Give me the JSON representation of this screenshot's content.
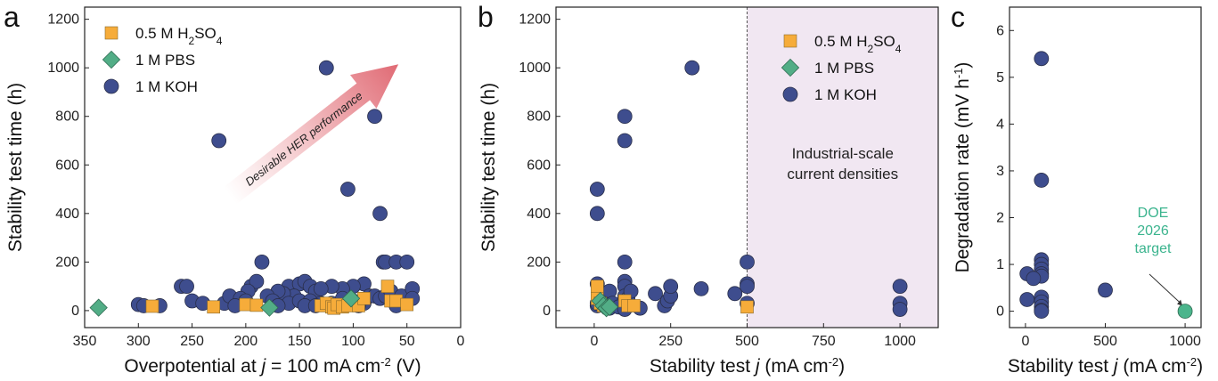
{
  "chart_data": [
    {
      "panel_label": "a",
      "type": "scatter",
      "xlabel": "Overpotential at j = 100 mA cm^-2 (V)",
      "xlabel_parts": [
        "Overpotential at ",
        "j",
        " = 100 mA cm",
        "-2",
        " (V)"
      ],
      "ylabel": "Stability test time (h)",
      "xlim": [
        350,
        0
      ],
      "ylim": [
        -70,
        1250
      ],
      "xticks": [
        350,
        300,
        250,
        200,
        150,
        100,
        50,
        0
      ],
      "yticks": [
        0,
        200,
        400,
        600,
        800,
        1000,
        1200
      ],
      "arrow_label": "Desirable HER performance",
      "legend": [
        {
          "base": "0.5 M H",
          "sub": "2",
          "mid": "SO",
          "sub2": "4",
          "marker": "square",
          "color": "#f6ac3a"
        },
        {
          "base": "1 M PBS",
          "marker": "diamond",
          "color": "#52ad86"
        },
        {
          "base": "1 M KOH",
          "marker": "circle",
          "color": "#3e4d8e"
        }
      ],
      "series": [
        {
          "name": "0.5 M H2SO4",
          "marker": "square",
          "color": "#f6ac3a",
          "x": [
            287,
            230,
            200,
            190,
            130,
            125,
            120,
            118,
            115,
            110,
            105,
            95,
            90,
            68,
            65,
            60,
            50
          ],
          "y": [
            18,
            15,
            25,
            22,
            20,
            30,
            15,
            10,
            25,
            15,
            20,
            20,
            50,
            100,
            40,
            40,
            25
          ]
        },
        {
          "name": "1 M PBS",
          "marker": "diamond",
          "color": "#52ad86",
          "x": [
            337,
            178,
            102
          ],
          "y": [
            12,
            12,
            50
          ]
        },
        {
          "name": "1 M KOH",
          "marker": "circle",
          "color": "#3e4d8e",
          "x": [
            125,
            225,
            105,
            80,
            75,
            72,
            70,
            60,
            50,
            185,
            195,
            190,
            198,
            160,
            150,
            145,
            140,
            90,
            100,
            110,
            120,
            135,
            130,
            155,
            165,
            170,
            180,
            260,
            255,
            250,
            240,
            220,
            215,
            205,
            200,
            175,
            160,
            150,
            140,
            130,
            120,
            110,
            100,
            90,
            85,
            80,
            75,
            70,
            65,
            55,
            45,
            300,
            295,
            280,
            210,
            170,
            145,
            135,
            115,
            95,
            60,
            45
          ],
          "y": [
            1000,
            700,
            500,
            800,
            400,
            200,
            200,
            200,
            200,
            200,
            100,
            120,
            80,
            100,
            110,
            120,
            100,
            110,
            100,
            90,
            100,
            80,
            90,
            60,
            70,
            80,
            60,
            100,
            100,
            40,
            30,
            30,
            60,
            50,
            40,
            40,
            30,
            40,
            40,
            30,
            30,
            50,
            40,
            30,
            60,
            60,
            50,
            60,
            80,
            60,
            90,
            25,
            20,
            20,
            20,
            20,
            20,
            20,
            20,
            20,
            20,
            50
          ]
        }
      ]
    },
    {
      "panel_label": "b",
      "type": "scatter",
      "xlabel": "Stability test j (mA cm^-2)",
      "xlabel_parts": [
        "Stability test ",
        "j",
        " (mA cm",
        "-2",
        ")"
      ],
      "ylabel": "Stability test time (h)",
      "xlim": [
        -125,
        1125
      ],
      "ylim": [
        -70,
        1250
      ],
      "xticks": [
        0,
        250,
        500,
        750,
        1000
      ],
      "yticks": [
        0,
        200,
        400,
        600,
        800,
        1000,
        1200
      ],
      "shaded_region": {
        "x_from": 500,
        "label_lines": [
          "Industrial-scale",
          "current densities"
        ],
        "color": "#f1e7f2"
      },
      "legend": [
        {
          "base": "0.5 M H",
          "sub": "2",
          "mid": "SO",
          "sub2": "4",
          "marker": "square",
          "color": "#f6ac3a"
        },
        {
          "base": "1 M PBS",
          "marker": "diamond",
          "color": "#52ad86"
        },
        {
          "base": "1 M KOH",
          "marker": "circle",
          "color": "#3e4d8e"
        }
      ],
      "series": [
        {
          "name": "0.5 M H2SO4",
          "marker": "square",
          "color": "#f6ac3a",
          "x": [
            10,
            10,
            20,
            30,
            100,
            110,
            130,
            500
          ],
          "y": [
            100,
            50,
            30,
            20,
            40,
            20,
            20,
            15
          ]
        },
        {
          "name": "1 M PBS",
          "marker": "diamond",
          "color": "#52ad86",
          "x": [
            20,
            30,
            40,
            50
          ],
          "y": [
            40,
            20,
            10,
            15
          ]
        },
        {
          "name": "1 M KOH",
          "marker": "circle",
          "color": "#3e4d8e",
          "x": [
            320,
            100,
            100,
            10,
            10,
            100,
            500,
            500,
            500,
            500,
            1000,
            1000,
            1000,
            10,
            10,
            20,
            50,
            50,
            100,
            100,
            100,
            110,
            120,
            150,
            200,
            230,
            240,
            250,
            250,
            350,
            460,
            10,
            30,
            60,
            80,
            100
          ],
          "y": [
            1000,
            800,
            700,
            500,
            400,
            200,
            200,
            110,
            100,
            30,
            100,
            30,
            5,
            110,
            20,
            60,
            10,
            80,
            120,
            100,
            60,
            50,
            80,
            10,
            70,
            20,
            40,
            60,
            100,
            90,
            70,
            30,
            30,
            30,
            15,
            5
          ]
        }
      ]
    },
    {
      "panel_label": "c",
      "type": "scatter",
      "xlabel": "Stability test j (mA cm^-2)",
      "xlabel_parts": [
        "Stability test ",
        "j",
        " (mA cm",
        "-2",
        ")"
      ],
      "ylabel": "Degradation rate (mV h^-1)",
      "ylabel_parts": [
        "Degradation rate (mV h",
        "-1",
        ")"
      ],
      "xlim": [
        -100,
        1100
      ],
      "ylim": [
        -0.35,
        6.5
      ],
      "xticks": [
        0,
        500,
        1000
      ],
      "yticks": [
        0,
        1,
        2,
        3,
        4,
        5,
        6
      ],
      "target_label_lines": [
        "DOE",
        "2026",
        "target"
      ],
      "target_point": {
        "x": 1000,
        "y": 0,
        "color": "#4bb58c"
      },
      "series": [
        {
          "name": "1 M KOH",
          "marker": "circle",
          "color": "#3e4d8e",
          "x": [
            100,
            100,
            100,
            100,
            100,
            100,
            100,
            100,
            100,
            100,
            100,
            10,
            10,
            50,
            500,
            100
          ],
          "y": [
            5.4,
            2.8,
            1.1,
            1.0,
            0.9,
            0.8,
            0.75,
            0.3,
            0.2,
            0.1,
            0.02,
            0.8,
            0.25,
            0.7,
            0.45,
            0.0
          ]
        }
      ]
    }
  ]
}
